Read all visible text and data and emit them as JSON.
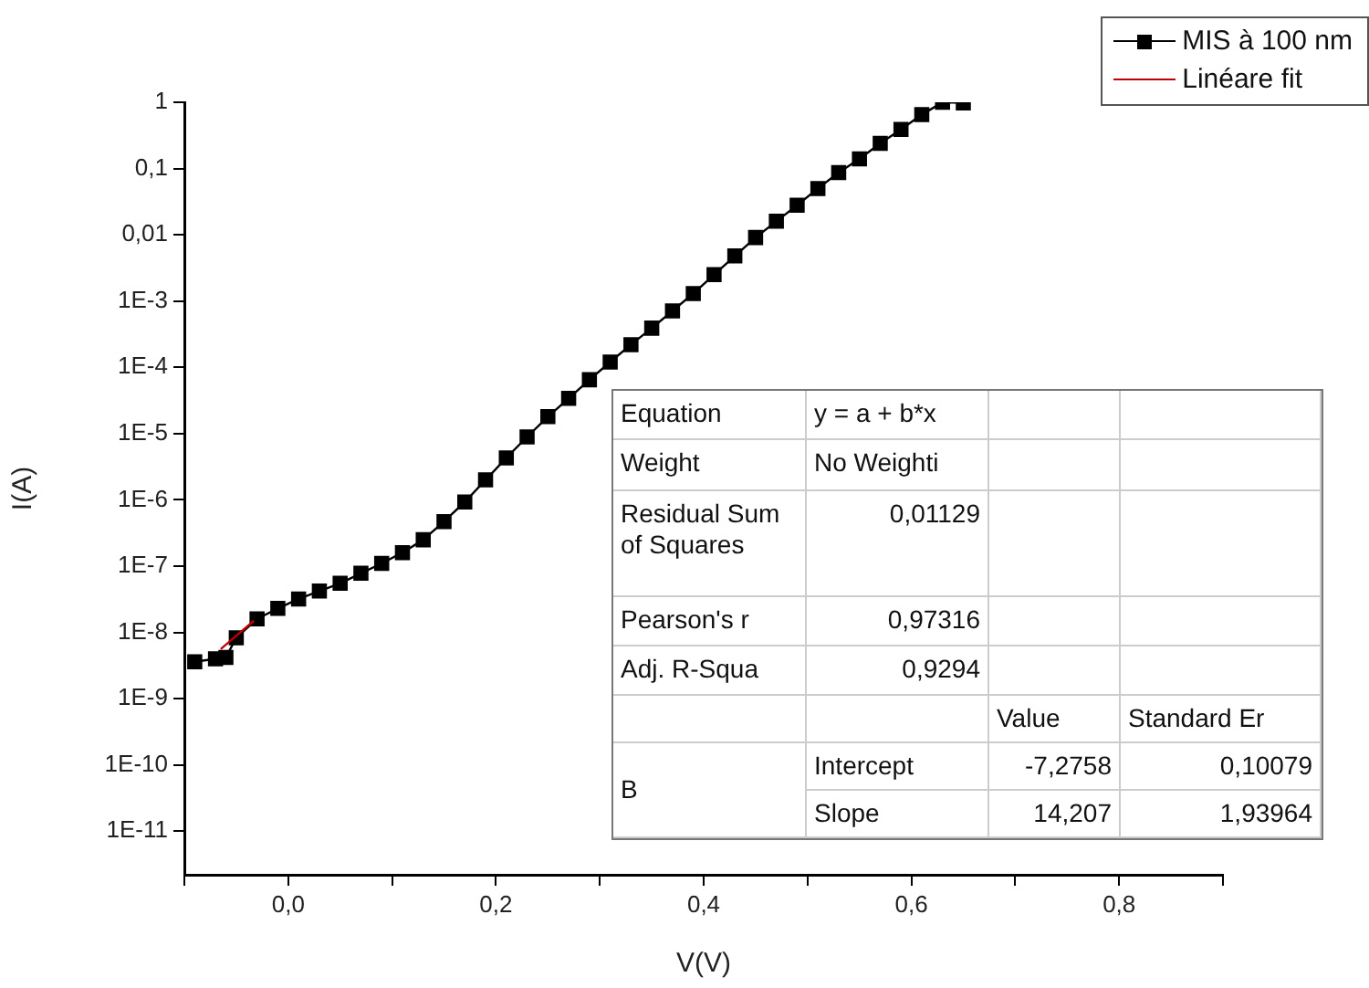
{
  "chart_data": {
    "type": "line",
    "xlabel": "V(V)",
    "ylabel": "I(A)",
    "log": "y",
    "grid": false,
    "legend": "top right",
    "xlim": [
      -0.1,
      0.9
    ],
    "ylim": [
      2.2e-12,
      1
    ],
    "xticks": [
      {
        "value": -0.1,
        "label": null
      },
      {
        "value": 0,
        "label": "0,0"
      },
      {
        "value": 0.1,
        "label": null
      },
      {
        "value": 0.2,
        "label": "0,2"
      },
      {
        "value": 0.3,
        "label": null
      },
      {
        "value": 0.4,
        "label": "0,4"
      },
      {
        "value": 0.5,
        "label": null
      },
      {
        "value": 0.6,
        "label": "0,6"
      },
      {
        "value": 0.7,
        "label": null
      },
      {
        "value": 0.8,
        "label": "0,8"
      },
      {
        "value": 0.9,
        "label": null
      }
    ],
    "yticks": [
      {
        "value": 1e-11,
        "label": "1E-11"
      },
      {
        "value": 1e-10,
        "label": "1E-10"
      },
      {
        "value": 1e-09,
        "label": "1E-9"
      },
      {
        "value": 1e-08,
        "label": "1E-8"
      },
      {
        "value": 1e-07,
        "label": "1E-7"
      },
      {
        "value": 1e-06,
        "label": "1E-6"
      },
      {
        "value": 1e-05,
        "label": "1E-5"
      },
      {
        "value": 0.0001,
        "label": "1E-4"
      },
      {
        "value": 0.001,
        "label": "1E-3"
      },
      {
        "value": 0.01,
        "label": "0,01"
      },
      {
        "value": 0.1,
        "label": "0,1"
      },
      {
        "value": 1,
        "label": "1"
      }
    ],
    "series": [
      {
        "name": "MIS à 100 nm",
        "type": "line",
        "marker": "square",
        "color": "#000000",
        "x": [
          -0.09,
          -0.07,
          -0.06,
          -0.05,
          -0.03,
          -0.01,
          0.01,
          0.03,
          0.05,
          0.07,
          0.09,
          0.11,
          0.13,
          0.15,
          0.17,
          0.19,
          0.21,
          0.23,
          0.25,
          0.27,
          0.29,
          0.31,
          0.33,
          0.35,
          0.37,
          0.39,
          0.41,
          0.43,
          0.45,
          0.47,
          0.49,
          0.51,
          0.53,
          0.55,
          0.57,
          0.59,
          0.61,
          0.63,
          0.65
        ],
        "values": [
          3.6e-09,
          4e-09,
          4.2e-09,
          8.3e-09,
          1.6e-08,
          2.3e-08,
          3.2e-08,
          4.2e-08,
          5.5e-08,
          7.8e-08,
          1.1e-07,
          1.6e-07,
          2.5e-07,
          4.7e-07,
          9.3e-07,
          2e-06,
          4.3e-06,
          8.9e-06,
          1.8e-05,
          3.4e-05,
          6.5e-05,
          0.00012,
          0.00022,
          0.00039,
          0.00071,
          0.0013,
          0.0025,
          0.0048,
          0.0091,
          0.016,
          0.028,
          0.05,
          0.087,
          0.14,
          0.24,
          0.39,
          0.65,
          1.0,
          0.98
        ]
      },
      {
        "name": "Linéare fit",
        "type": "line",
        "marker": "none",
        "color": "#c00000",
        "x": [
          -0.065,
          -0.033
        ],
        "values": [
          5.6e-09,
          1.5e-08
        ]
      }
    ],
    "annotations": [
      "Equation",
      "y = a + b*x",
      "Weight",
      "No Weighti",
      "Residual Sum of Squares",
      "0,01129",
      "Pearson's r",
      "0,97316",
      "Adj. R-Squa",
      "0,9294",
      "Value",
      "Standard Er",
      "B",
      "Intercept",
      "-7,2758",
      "0,10079",
      "Slope",
      "14,207",
      "1,93964"
    ]
  }
}
